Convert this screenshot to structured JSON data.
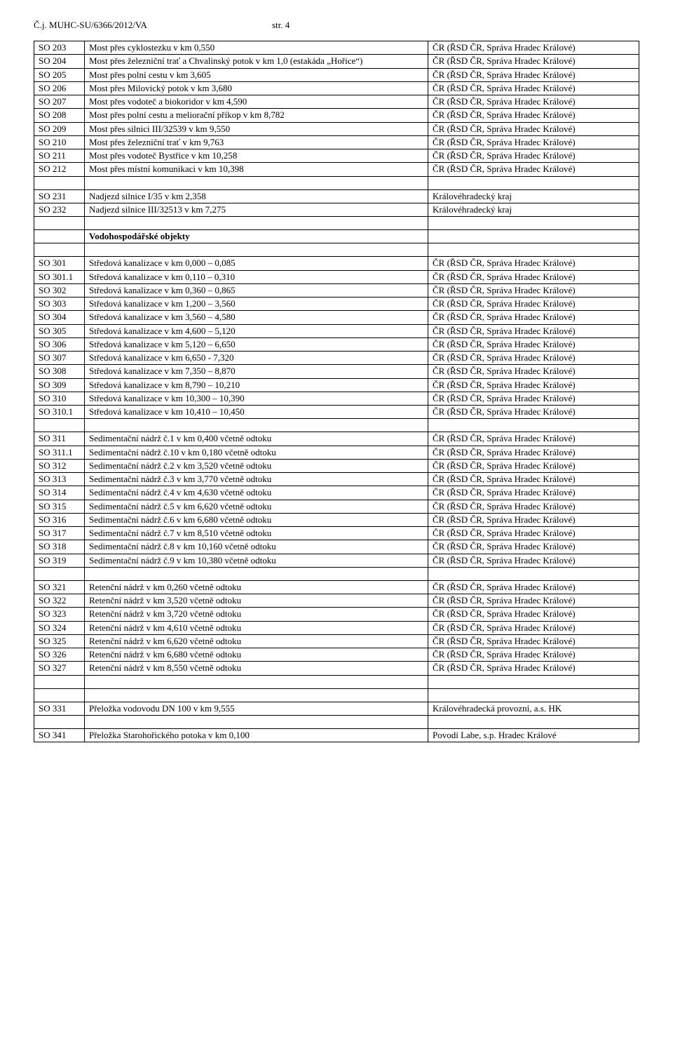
{
  "header": {
    "left": "Č.j. MUHC-SU/6366/2012/VA",
    "right": "str. 4"
  },
  "owner": {
    "cr_rsd": "ČR (ŘSD ČR, Správa Hradec Králové)",
    "kraj": "Královéhradecký kraj",
    "khprov": "Královéhradecká provozní, a.s. HK",
    "povodi": "Povodí Labe, s.p. Hradec Králové"
  },
  "section_label": "Vodohospodářské objekty",
  "groups": [
    {
      "rows": [
        {
          "c": "SO 203",
          "d": "Most přes cyklostezku v km 0,550",
          "o": "cr_rsd"
        },
        {
          "c": "SO 204",
          "d": "Most přes železniční trať a Chvalinský potok v km 1,0 (estakáda „Hořice“)",
          "o": "cr_rsd"
        },
        {
          "c": "SO 205",
          "d": "Most přes polní cestu v km 3,605",
          "o": "cr_rsd"
        },
        {
          "c": "SO 206",
          "d": "Most přes Milovický potok v km 3,680",
          "o": "cr_rsd"
        },
        {
          "c": "SO 207",
          "d": "Most přes vodoteč a biokoridor v km 4,590",
          "o": "cr_rsd"
        },
        {
          "c": "SO 208",
          "d": "Most přes polní cestu a meliorační příkop v km 8,782",
          "o": "cr_rsd"
        },
        {
          "c": "SO 209",
          "d": "Most přes silnici III/32539 v km 9,550",
          "o": "cr_rsd"
        },
        {
          "c": "SO 210",
          "d": "Most přes železniční trať v km 9,763",
          "o": "cr_rsd"
        },
        {
          "c": "SO 211",
          "d": "Most přes vodoteč Bystřice v km 10,258",
          "o": "cr_rsd"
        },
        {
          "c": "SO 212",
          "d": "Most přes místní komunikaci v km 10,398",
          "o": "cr_rsd"
        }
      ],
      "spacer_after": 1
    },
    {
      "rows": [
        {
          "c": "SO 231",
          "d": "Nadjezd silnice I/35 v km 2,358",
          "o": "kraj"
        },
        {
          "c": "SO 232",
          "d": "Nadjezd silnice III/32513 v km 7,275",
          "o": "kraj"
        }
      ],
      "spacer_after": 1
    },
    {
      "heading": true,
      "spacer_after": 1
    },
    {
      "rows": [
        {
          "c": "SO 301",
          "d": "Středová kanalizace v km 0,000 – 0,085",
          "o": "cr_rsd"
        },
        {
          "c": "SO 301.1",
          "d": "Středová kanalizace v km 0,110 – 0,310",
          "o": "cr_rsd"
        },
        {
          "c": "SO 302",
          "d": "Středová kanalizace v km 0,360 – 0,865",
          "o": "cr_rsd"
        },
        {
          "c": "SO 303",
          "d": "Středová kanalizace v km 1,200 – 3,560",
          "o": "cr_rsd"
        },
        {
          "c": "SO 304",
          "d": "Středová kanalizace v km 3,560 – 4,580",
          "o": "cr_rsd"
        },
        {
          "c": "SO 305",
          "d": "Středová kanalizace v km 4,600 – 5,120",
          "o": "cr_rsd"
        },
        {
          "c": "SO 306",
          "d": "Středová kanalizace v km 5,120 – 6,650",
          "o": "cr_rsd"
        },
        {
          "c": "SO 307",
          "d": "Středová kanalizace v km 6,650 - 7,320",
          "o": "cr_rsd"
        },
        {
          "c": "SO 308",
          "d": "Středová kanalizace v km 7,350 – 8,870",
          "o": "cr_rsd"
        },
        {
          "c": "SO 309",
          "d": "Středová kanalizace v km 8,790 – 10,210",
          "o": "cr_rsd"
        },
        {
          "c": "SO 310",
          "d": "Středová kanalizace v km 10,300 – 10,390",
          "o": "cr_rsd"
        },
        {
          "c": "SO 310.1",
          "d": "Středová kanalizace v km 10,410 – 10,450",
          "o": "cr_rsd"
        }
      ],
      "spacer_after": 1
    },
    {
      "rows": [
        {
          "c": "SO 311",
          "d": "Sedimentační nádrž č.1 v km 0,400 včetně odtoku",
          "o": "cr_rsd"
        },
        {
          "c": "SO 311.1",
          "d": "Sedimentační nádrž č.10 v km 0,180 včetně odtoku",
          "o": "cr_rsd"
        },
        {
          "c": "SO 312",
          "d": "Sedimentační nádrž č.2 v km 3,520 včetně odtoku",
          "o": "cr_rsd"
        },
        {
          "c": "SO 313",
          "d": "Sedimentační nádrž č.3 v km 3,770 včetně odtoku",
          "o": "cr_rsd"
        },
        {
          "c": "SO 314",
          "d": "Sedimentační nádrž č.4 v km 4,630 včetně odtoku",
          "o": "cr_rsd"
        },
        {
          "c": "SO 315",
          "d": "Sedimentační nádrž č.5 v km 6,620 včetně odtoku",
          "o": "cr_rsd"
        },
        {
          "c": "SO 316",
          "d": "Sedimentační nádrž č.6 v km 6,680 včetně odtoku",
          "o": "cr_rsd"
        },
        {
          "c": "SO 317",
          "d": "Sedimentační nádrž č.7 v km 8,510 včetně odtoku",
          "o": "cr_rsd"
        },
        {
          "c": "SO 318",
          "d": "Sedimentační nádrž č.8 v km 10,160 včetně odtoku",
          "o": "cr_rsd"
        },
        {
          "c": "SO 319",
          "d": "Sedimentační nádrž č.9 v km 10,380 včetně odtoku",
          "o": "cr_rsd"
        }
      ],
      "spacer_after": 1
    },
    {
      "rows": [
        {
          "c": "SO 321",
          "d": "Retenční nádrž v km 0,260 včetně odtoku",
          "o": "cr_rsd"
        },
        {
          "c": "SO 322",
          "d": "Retenční nádrž v km 3,520 včetně odtoku",
          "o": "cr_rsd"
        },
        {
          "c": "SO 323",
          "d": "Retenční nádrž v km 3,720 včetně odtoku",
          "o": "cr_rsd"
        },
        {
          "c": "SO 324",
          "d": "Retenční nádrž v km 4,610 včetně odtoku",
          "o": "cr_rsd"
        },
        {
          "c": "SO 325",
          "d": "Retenční nádrž v km 6,620 včetně odtoku",
          "o": "cr_rsd"
        },
        {
          "c": "SO 326",
          "d": "Retenční nádrž v km 6,680 včetně odtoku",
          "o": "cr_rsd"
        },
        {
          "c": "SO 327",
          "d": "Retenční nádrž v km 8,550 včetně odtoku",
          "o": "cr_rsd"
        }
      ],
      "spacer_after": 2
    },
    {
      "rows": [
        {
          "c": "SO 331",
          "d": "Přeložka vodovodu DN 100 v km 9,555",
          "o": "khprov"
        }
      ],
      "spacer_after": 1
    },
    {
      "rows": [
        {
          "c": "SO 341",
          "d": "Přeložka Starohořického potoka v km 0,100",
          "o": "povodi"
        }
      ],
      "spacer_after": 0
    }
  ]
}
